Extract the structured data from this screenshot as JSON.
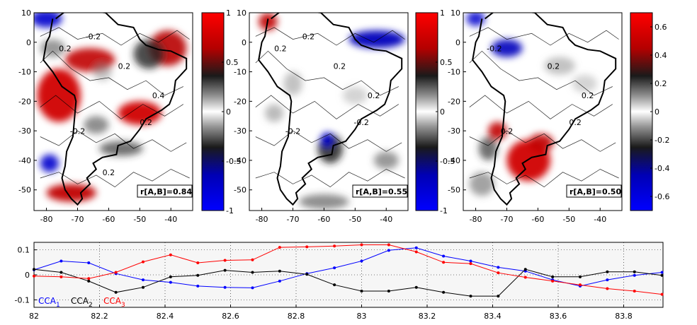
{
  "chart_data": [
    {
      "type": "heatmap",
      "xticks": [
        "-80",
        "-70",
        "-60",
        "-50",
        "-40"
      ],
      "yticks": [
        "10",
        "0",
        "-10",
        "-20",
        "-30",
        "-40",
        "-50"
      ],
      "colorbar": {
        "range": [
          -1,
          1
        ],
        "ticks": [
          "1",
          "0.5",
          "0",
          "-0.5",
          "-1"
        ]
      },
      "annotation": "r[A,B]=0.84",
      "contour_labels": [
        "0.2",
        "-0.2",
        "0.2",
        "0.2",
        "0.4",
        "-0.2",
        "0.2"
      ],
      "colors": {
        "positive": "#e60000",
        "negative": "#0000dd",
        "neutral": "#ffffff"
      }
    },
    {
      "type": "heatmap",
      "xticks": [
        "-80",
        "-70",
        "-60",
        "-50",
        "-40"
      ],
      "yticks": [
        "10",
        "0",
        "-10",
        "-20",
        "-30",
        "-40",
        "-50"
      ],
      "colorbar": {
        "range": [
          -1,
          1
        ],
        "ticks": [
          "1",
          "0.5",
          "0",
          "-0.5",
          "-1"
        ]
      },
      "annotation": "r[A,B]=0.55",
      "contour_labels": [
        "0.2",
        "-0.2",
        "0.2",
        "-0.2",
        "0.2",
        "0.2"
      ],
      "colors": {
        "positive": "#e60000",
        "negative": "#0000dd",
        "neutral": "#ffffff"
      }
    },
    {
      "type": "heatmap",
      "xticks": [
        "-80",
        "-70",
        "-60",
        "-50",
        "-40"
      ],
      "yticks": [
        "10",
        "0",
        "-10",
        "-20",
        "-30",
        "-40",
        "-50"
      ],
      "colorbar": {
        "range": [
          -0.7,
          0.7
        ],
        "ticks": [
          "0.6",
          "0.4",
          "0.2",
          "0",
          "-0.2",
          "-0.4",
          "-0.6"
        ]
      },
      "annotation": "r[A,B]=0.50",
      "contour_labels": [
        "-0.2",
        "0.2",
        "0.2",
        "0.2",
        "0.2"
      ],
      "colors": {
        "positive": "#e60000",
        "negative": "#0000dd",
        "neutral": "#ffffff"
      }
    },
    {
      "type": "line",
      "xlim": [
        82,
        83.92
      ],
      "ylim": [
        -0.13,
        0.13
      ],
      "xticks": [
        "82",
        "82.2",
        "82.4",
        "82.6",
        "82.8",
        "83",
        "83.2",
        "83.4",
        "83.6",
        "83.8"
      ],
      "yticks": [
        "0.1",
        "0",
        "-0.1"
      ],
      "grid": true,
      "legend_position": "bottom-left",
      "x": [
        82.0,
        82.083,
        82.167,
        82.25,
        82.333,
        82.417,
        82.5,
        82.583,
        82.667,
        82.75,
        82.833,
        82.917,
        83.0,
        83.083,
        83.167,
        83.25,
        83.333,
        83.417,
        83.5,
        83.583,
        83.667,
        83.75,
        83.833,
        83.917
      ],
      "series": [
        {
          "name": "CCA",
          "sub": "1",
          "color": "#0000ff",
          "values": [
            0.02,
            0.055,
            0.048,
            0.005,
            -0.02,
            -0.03,
            -0.045,
            -0.05,
            -0.052,
            -0.025,
            0.005,
            0.028,
            0.055,
            0.098,
            0.108,
            0.075,
            0.055,
            0.03,
            0.015,
            -0.02,
            -0.045,
            -0.02,
            -0.002,
            0.01
          ]
        },
        {
          "name": "CCA",
          "sub": "2",
          "color": "#000000",
          "values": [
            0.022,
            0.01,
            -0.025,
            -0.07,
            -0.05,
            -0.008,
            -0.002,
            0.018,
            0.01,
            0.015,
            0.002,
            -0.04,
            -0.065,
            -0.065,
            -0.05,
            -0.07,
            -0.085,
            -0.085,
            0.022,
            -0.008,
            -0.008,
            0.012,
            0.012,
            -0.002
          ]
        },
        {
          "name": "CCA",
          "sub": "3",
          "color": "#ff0000",
          "values": [
            -0.005,
            -0.008,
            -0.015,
            0.01,
            0.052,
            0.08,
            0.048,
            0.058,
            0.06,
            0.11,
            0.112,
            0.115,
            0.12,
            0.12,
            0.092,
            0.05,
            0.045,
            0.008,
            -0.01,
            -0.025,
            -0.04,
            -0.055,
            -0.065,
            -0.078
          ]
        }
      ]
    }
  ]
}
